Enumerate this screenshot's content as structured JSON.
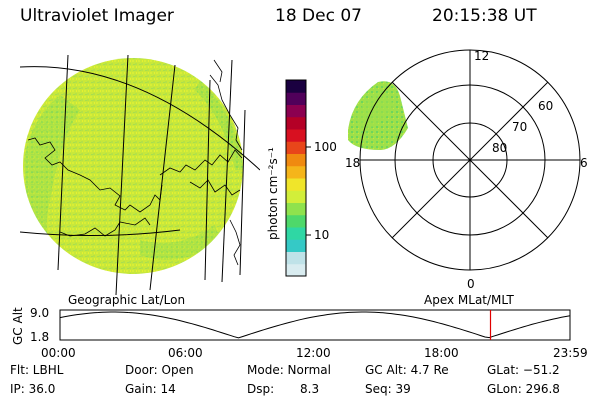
{
  "header": {
    "instrument": "Ultraviolet Imager",
    "date": "18 Dec 07",
    "time": "20:15:38 UT"
  },
  "colorbar": {
    "units_label": "photon cm⁻²s⁻¹",
    "tick_100": "100",
    "tick_10": "10",
    "colors": [
      "#d9ecf0",
      "#bfe2e8",
      "#35c9c6",
      "#2fd7a4",
      "#4ed86a",
      "#8fe24d",
      "#d2ee3a",
      "#f0e52a",
      "#f5b51a",
      "#f08a10",
      "#e8461a",
      "#d81020",
      "#b40026",
      "#8b0050",
      "#50005a",
      "#1a0040"
    ]
  },
  "panels": {
    "geo_label": "Geographic Lat/Lon",
    "apex_label": "Apex MLat/MLT"
  },
  "polar": {
    "mlt_12": "12",
    "mlt_18": "18",
    "mlt_6": "6",
    "mlt_0": "0",
    "lat_60": "60",
    "lat_70": "70",
    "lat_80": "80"
  },
  "altitude": {
    "axis_label": "GC Alt",
    "tick_high": "9.0",
    "tick_low": "1.8",
    "hours": [
      "00:00",
      "06:00",
      "12:00",
      "18:00",
      "23:59"
    ],
    "marker_hour": 20.26
  },
  "info": {
    "flt": "Flt: LBHL",
    "ip": "IP: 36.0",
    "door": "Door: Open",
    "gain": "Gain: 14",
    "mode": "Mode: Normal",
    "dsp_label": "Dsp:",
    "dsp_value": "8.3",
    "gc_alt": "GC Alt: 4.7 Re",
    "seq": "Seq: 39",
    "glat": "GLat: −51.2",
    "glon": "GLon: 296.8"
  }
}
